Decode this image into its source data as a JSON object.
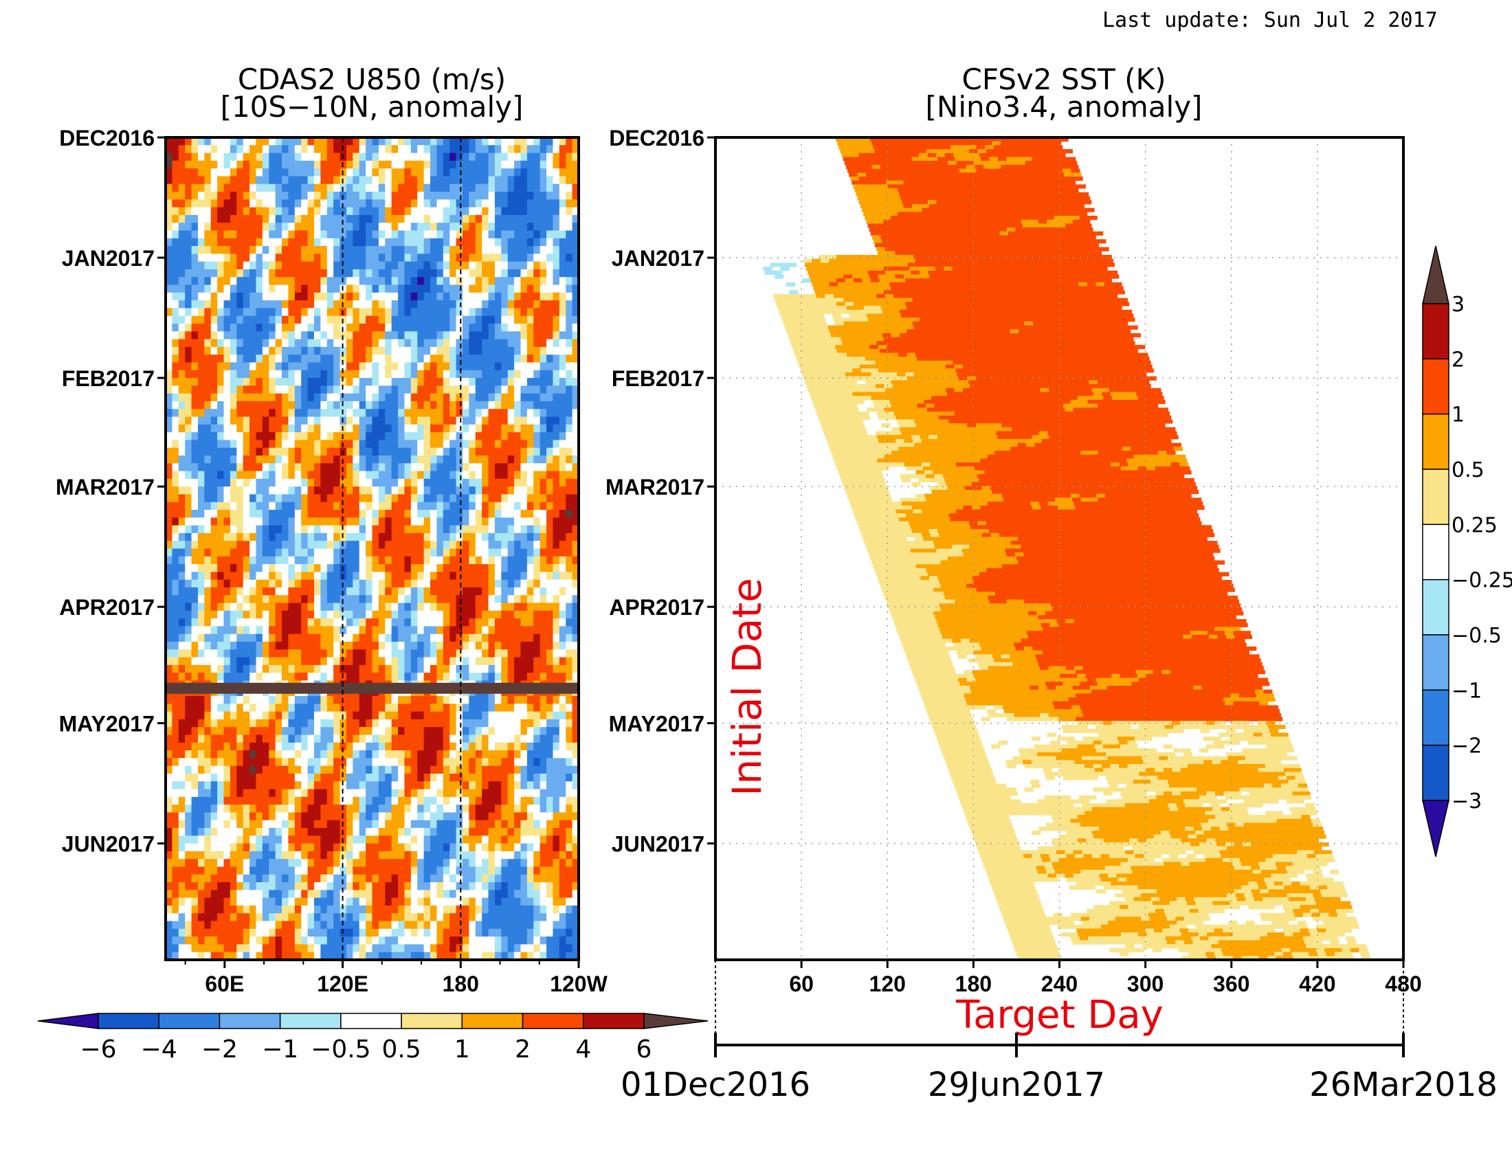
{
  "header": {
    "last_update": "Last update: Sun Jul 2 2017"
  },
  "chart_data": [
    {
      "id": "u850",
      "type": "heatmap",
      "title": "CDAS2 U850 (m/s)",
      "subtitle": "[10S−10N, anomaly]",
      "x_ticks": [
        "60E",
        "120E",
        "180",
        "120W"
      ],
      "y_ticks": [
        "DEC2016",
        "JAN2017",
        "FEB2017",
        "MAR2017",
        "APR2017",
        "MAY2017",
        "JUN2017"
      ],
      "xlim": [
        30,
        240
      ],
      "reference_lines_x": [
        120,
        180
      ],
      "missing_band": "2017-04-22",
      "colorbar": {
        "orientation": "horizontal",
        "labels": [
          "−6",
          "−4",
          "−2",
          "−1",
          "−0.5",
          "0.5",
          "1",
          "2",
          "4",
          "6"
        ],
        "levels": [
          -6,
          -4,
          -2,
          -1,
          -0.5,
          0.5,
          1,
          2,
          4,
          6
        ],
        "colors": [
          "#2b0aa0",
          "#1558c8",
          "#2f7fe0",
          "#6aacf0",
          "#a8e6f5",
          "#ffffff",
          "#fae48a",
          "#fca400",
          "#fa4a00",
          "#b00e0a",
          "#5a3c36"
        ]
      }
    },
    {
      "id": "sst",
      "type": "heatmap",
      "title": "CFSv2 SST (K)",
      "subtitle": "[Nino3.4, anomaly]",
      "y_label": "Initial Date",
      "x_label": "Target Day",
      "x_ticks": [
        "60",
        "120",
        "180",
        "240",
        "300",
        "360",
        "420",
        "480"
      ],
      "xlim": [
        0,
        480
      ],
      "y_ticks": [
        "DEC2016",
        "JAN2017",
        "FEB2017",
        "MAR2017",
        "APR2017",
        "MAY2017",
        "JUN2017"
      ],
      "date_axis": [
        "01Dec2016",
        "29Jun2017",
        "26Mar2018"
      ],
      "colorbar": {
        "orientation": "vertical",
        "labels": [
          "3",
          "2",
          "1",
          "0.5",
          "0.25",
          "−0.25",
          "−0.5",
          "−1",
          "−2",
          "−3"
        ],
        "levels": [
          3,
          2,
          1,
          0.5,
          0.25,
          -0.25,
          -0.5,
          -1,
          -2,
          -3
        ],
        "colors": [
          "#5a3c36",
          "#b00e0a",
          "#fa4a00",
          "#fca400",
          "#fae48a",
          "#ffffff",
          "#a8e6f5",
          "#6aacf0",
          "#2f7fe0",
          "#1558c8",
          "#2b0aa0"
        ]
      }
    }
  ]
}
